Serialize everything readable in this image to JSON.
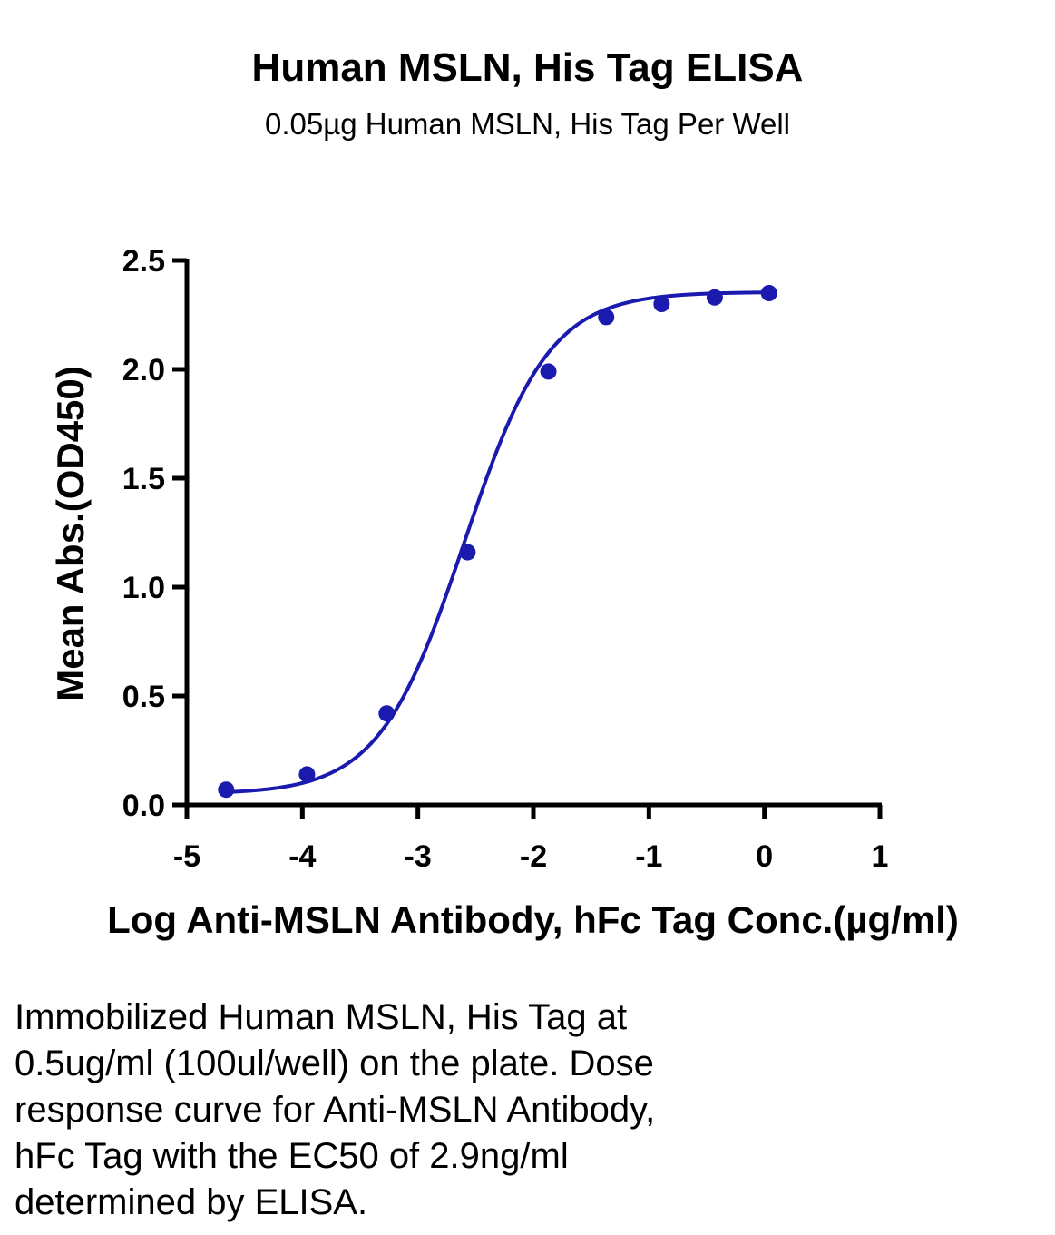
{
  "chart_data": {
    "type": "scatter",
    "title": "Human MSLN, His Tag ELISA",
    "subtitle": "0.05µg Human MSLN, His Tag Per Well",
    "xlabel": "Log Anti-MSLN Antibody, hFc Tag Conc.(µg/ml)",
    "ylabel": "Mean Abs.(OD450)",
    "xlim": [
      -5,
      1
    ],
    "ylim": [
      0,
      2.5
    ],
    "xticks": [
      "-5",
      "-4",
      "-3",
      "-2",
      "-1",
      "0",
      "1"
    ],
    "yticks": [
      "0.0",
      "0.5",
      "1.0",
      "1.5",
      "2.0",
      "2.5"
    ],
    "grid": false,
    "series": [
      {
        "x": [
          -4.66,
          -3.96,
          -3.27,
          -2.57,
          -1.87,
          -1.37,
          -0.89,
          -0.43,
          0.04
        ],
        "y": [
          0.07,
          0.14,
          0.42,
          1.16,
          1.99,
          2.24,
          2.3,
          2.33,
          2.35
        ],
        "color": "#1a1aaf",
        "fit": "4PL sigmoidal curve"
      }
    ]
  },
  "caption": [
    "Immobilized Human MSLN, His Tag at",
    "0.5ug/ml (100ul/well) on the plate. Dose",
    "response curve for Anti-MSLN Antibody,",
    "hFc Tag with the EC50 of 2.9ng/ml",
    "determined by ELISA."
  ]
}
